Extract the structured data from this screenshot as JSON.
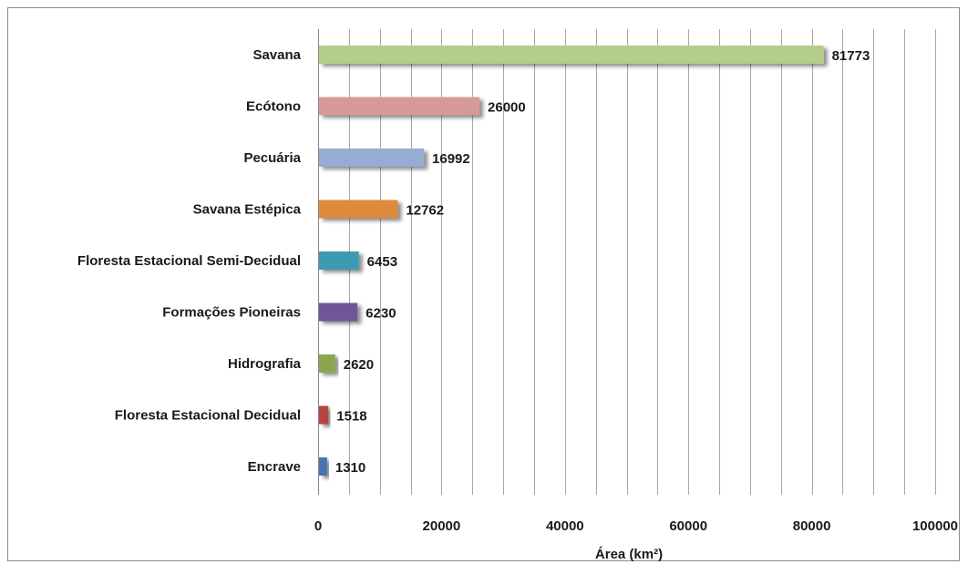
{
  "chart_data": {
    "type": "bar",
    "orientation": "horizontal",
    "title": "",
    "xlabel": "Área (km²)",
    "ylabel": "",
    "categories": [
      "Savana",
      "Ecótono",
      "Pecuária",
      "Savana Estépica",
      "Floresta Estacional Semi-Decidual",
      "Formações Pioneiras",
      "Hidrografia",
      "Floresta Estacional Decidual",
      "Encrave"
    ],
    "values": [
      81773,
      26000,
      16992,
      12762,
      6453,
      6230,
      2620,
      1518,
      1310
    ],
    "value_labels": [
      "81773",
      "26000",
      "16992",
      "12762",
      "6453",
      "6230",
      "2620",
      "1518",
      "1310"
    ],
    "colors": [
      "#b3cd8c",
      "#d59a98",
      "#97abd3",
      "#de8a3e",
      "#3a9bb1",
      "#6f5497",
      "#8aa74f",
      "#b5443f",
      "#4674b0"
    ],
    "xlim": [
      0,
      100000
    ],
    "xticks": [
      0,
      20000,
      40000,
      60000,
      80000,
      100000
    ],
    "xtick_labels": [
      "0",
      "20000",
      "40000",
      "60000",
      "80000",
      "100000"
    ],
    "grid": true,
    "legend": "none"
  }
}
